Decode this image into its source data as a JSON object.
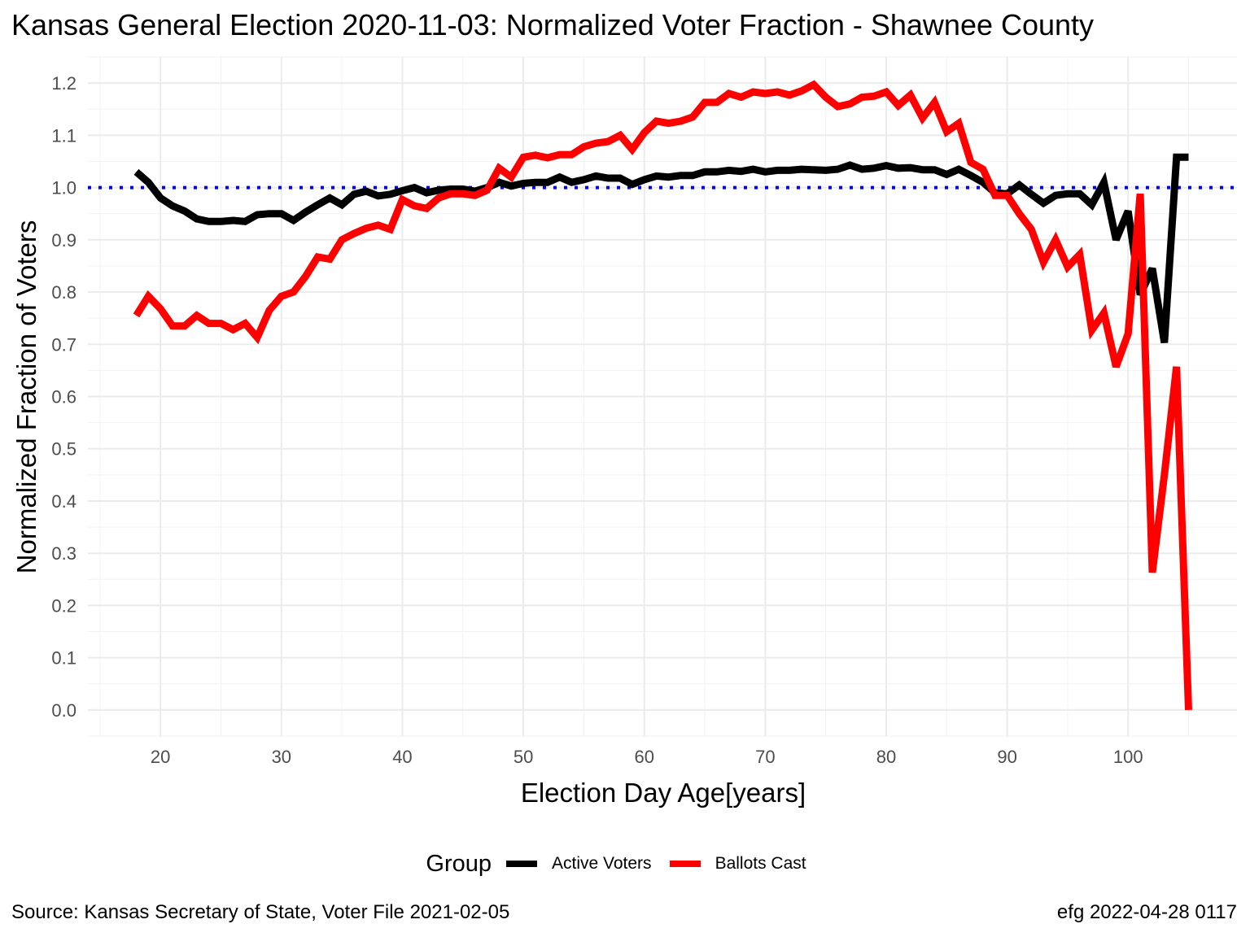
{
  "chart_data": {
    "type": "line",
    "title": "Kansas General Election 2020-11-03:  Normalized Voter Fraction - Shawnee County",
    "xlabel": "Election Day Age[years]",
    "ylabel": "Normalized Fraction of Voters",
    "xlim": [
      14,
      109
    ],
    "ylim": [
      -0.05,
      1.25
    ],
    "x_ticks": [
      20,
      30,
      40,
      50,
      60,
      70,
      80,
      90,
      100
    ],
    "y_ticks": [
      0.0,
      0.1,
      0.2,
      0.3,
      0.4,
      0.5,
      0.6,
      0.7,
      0.8,
      0.9,
      1.0,
      1.1,
      1.2
    ],
    "y_tick_labels": [
      "0.0",
      "0.1",
      "0.2",
      "0.3",
      "0.4",
      "0.5",
      "0.6",
      "0.7",
      "0.8",
      "0.9",
      "1.0",
      "1.1",
      "1.2"
    ],
    "grid": true,
    "reference_line": {
      "y": 1.0,
      "color": "#0000ff",
      "style": "dotted"
    },
    "legend": {
      "title": "Group",
      "position": "bottom"
    },
    "series": [
      {
        "name": "Active Voters",
        "color": "#000000",
        "points": [
          [
            18,
            1.03
          ],
          [
            19,
            1.01
          ],
          [
            20,
            0.98
          ],
          [
            21,
            0.965
          ],
          [
            22,
            0.955
          ],
          [
            23,
            0.94
          ],
          [
            24,
            0.935
          ],
          [
            25,
            0.935
          ],
          [
            26,
            0.937
          ],
          [
            27,
            0.935
          ],
          [
            28,
            0.948
          ],
          [
            29,
            0.95
          ],
          [
            30,
            0.95
          ],
          [
            31,
            0.937
          ],
          [
            32,
            0.953
          ],
          [
            33,
            0.967
          ],
          [
            34,
            0.98
          ],
          [
            35,
            0.967
          ],
          [
            36,
            0.987
          ],
          [
            37,
            0.993
          ],
          [
            38,
            0.984
          ],
          [
            39,
            0.987
          ],
          [
            40,
            0.994
          ],
          [
            41,
            1.0
          ],
          [
            42,
            0.99
          ],
          [
            43,
            0.995
          ],
          [
            44,
            0.997
          ],
          [
            45,
            0.997
          ],
          [
            46,
            0.993
          ],
          [
            47,
            1.0
          ],
          [
            48,
            1.01
          ],
          [
            49,
            1.003
          ],
          [
            50,
            1.008
          ],
          [
            51,
            1.01
          ],
          [
            52,
            1.01
          ],
          [
            53,
            1.02
          ],
          [
            54,
            1.01
          ],
          [
            55,
            1.015
          ],
          [
            56,
            1.022
          ],
          [
            57,
            1.018
          ],
          [
            58,
            1.018
          ],
          [
            59,
            1.006
          ],
          [
            60,
            1.015
          ],
          [
            61,
            1.022
          ],
          [
            62,
            1.02
          ],
          [
            63,
            1.023
          ],
          [
            64,
            1.023
          ],
          [
            65,
            1.03
          ],
          [
            66,
            1.03
          ],
          [
            67,
            1.033
          ],
          [
            68,
            1.031
          ],
          [
            69,
            1.035
          ],
          [
            70,
            1.03
          ],
          [
            71,
            1.033
          ],
          [
            72,
            1.033
          ],
          [
            73,
            1.035
          ],
          [
            74,
            1.034
          ],
          [
            75,
            1.033
          ],
          [
            76,
            1.035
          ],
          [
            77,
            1.043
          ],
          [
            78,
            1.035
          ],
          [
            79,
            1.037
          ],
          [
            80,
            1.042
          ],
          [
            81,
            1.037
          ],
          [
            82,
            1.038
          ],
          [
            83,
            1.034
          ],
          [
            84,
            1.034
          ],
          [
            85,
            1.025
          ],
          [
            86,
            1.035
          ],
          [
            87,
            1.023
          ],
          [
            88,
            1.01
          ],
          [
            89,
            0.99
          ],
          [
            90,
            0.988
          ],
          [
            91,
            1.005
          ],
          [
            92,
            0.987
          ],
          [
            93,
            0.97
          ],
          [
            94,
            0.985
          ],
          [
            95,
            0.988
          ],
          [
            96,
            0.988
          ],
          [
            97,
            0.967
          ],
          [
            98,
            1.01
          ],
          [
            99,
            0.9
          ],
          [
            100,
            0.955
          ],
          [
            101,
            0.795
          ],
          [
            102,
            0.845
          ],
          [
            103,
            0.703
          ],
          [
            104,
            1.058
          ],
          [
            105,
            1.058
          ]
        ]
      },
      {
        "name": "Ballots Cast",
        "color": "#ff0000",
        "points": [
          [
            18,
            0.755
          ],
          [
            19,
            0.792
          ],
          [
            20,
            0.768
          ],
          [
            21,
            0.735
          ],
          [
            22,
            0.735
          ],
          [
            23,
            0.755
          ],
          [
            24,
            0.74
          ],
          [
            25,
            0.74
          ],
          [
            26,
            0.728
          ],
          [
            27,
            0.74
          ],
          [
            28,
            0.713
          ],
          [
            29,
            0.765
          ],
          [
            30,
            0.792
          ],
          [
            31,
            0.8
          ],
          [
            32,
            0.83
          ],
          [
            33,
            0.867
          ],
          [
            34,
            0.863
          ],
          [
            35,
            0.9
          ],
          [
            36,
            0.912
          ],
          [
            37,
            0.922
          ],
          [
            38,
            0.928
          ],
          [
            39,
            0.92
          ],
          [
            40,
            0.977
          ],
          [
            41,
            0.965
          ],
          [
            42,
            0.96
          ],
          [
            43,
            0.98
          ],
          [
            44,
            0.988
          ],
          [
            45,
            0.988
          ],
          [
            46,
            0.985
          ],
          [
            47,
            0.995
          ],
          [
            48,
            1.037
          ],
          [
            49,
            1.02
          ],
          [
            50,
            1.058
          ],
          [
            51,
            1.062
          ],
          [
            52,
            1.057
          ],
          [
            53,
            1.063
          ],
          [
            54,
            1.063
          ],
          [
            55,
            1.078
          ],
          [
            56,
            1.085
          ],
          [
            57,
            1.088
          ],
          [
            58,
            1.1
          ],
          [
            59,
            1.073
          ],
          [
            60,
            1.105
          ],
          [
            61,
            1.127
          ],
          [
            62,
            1.123
          ],
          [
            63,
            1.127
          ],
          [
            64,
            1.135
          ],
          [
            65,
            1.163
          ],
          [
            66,
            1.163
          ],
          [
            67,
            1.18
          ],
          [
            68,
            1.173
          ],
          [
            69,
            1.183
          ],
          [
            70,
            1.18
          ],
          [
            71,
            1.183
          ],
          [
            72,
            1.177
          ],
          [
            73,
            1.185
          ],
          [
            74,
            1.197
          ],
          [
            75,
            1.173
          ],
          [
            76,
            1.155
          ],
          [
            77,
            1.16
          ],
          [
            78,
            1.173
          ],
          [
            79,
            1.175
          ],
          [
            80,
            1.183
          ],
          [
            81,
            1.157
          ],
          [
            82,
            1.177
          ],
          [
            83,
            1.133
          ],
          [
            84,
            1.163
          ],
          [
            85,
            1.107
          ],
          [
            86,
            1.123
          ],
          [
            87,
            1.048
          ],
          [
            88,
            1.035
          ],
          [
            89,
            0.985
          ],
          [
            90,
            0.985
          ],
          [
            91,
            0.95
          ],
          [
            92,
            0.92
          ],
          [
            93,
            0.857
          ],
          [
            94,
            0.9
          ],
          [
            95,
            0.848
          ],
          [
            96,
            0.872
          ],
          [
            97,
            0.727
          ],
          [
            98,
            0.76
          ],
          [
            99,
            0.657
          ],
          [
            100,
            0.72
          ],
          [
            101,
            0.988
          ],
          [
            102,
            0.263
          ],
          [
            103,
            0.45
          ],
          [
            104,
            0.657
          ],
          [
            105,
            0.0
          ]
        ]
      }
    ]
  },
  "caption_left": "Source:  Kansas Secretary of State, Voter File  2021-02-05",
  "caption_right": "efg 2022-04-28 0117"
}
